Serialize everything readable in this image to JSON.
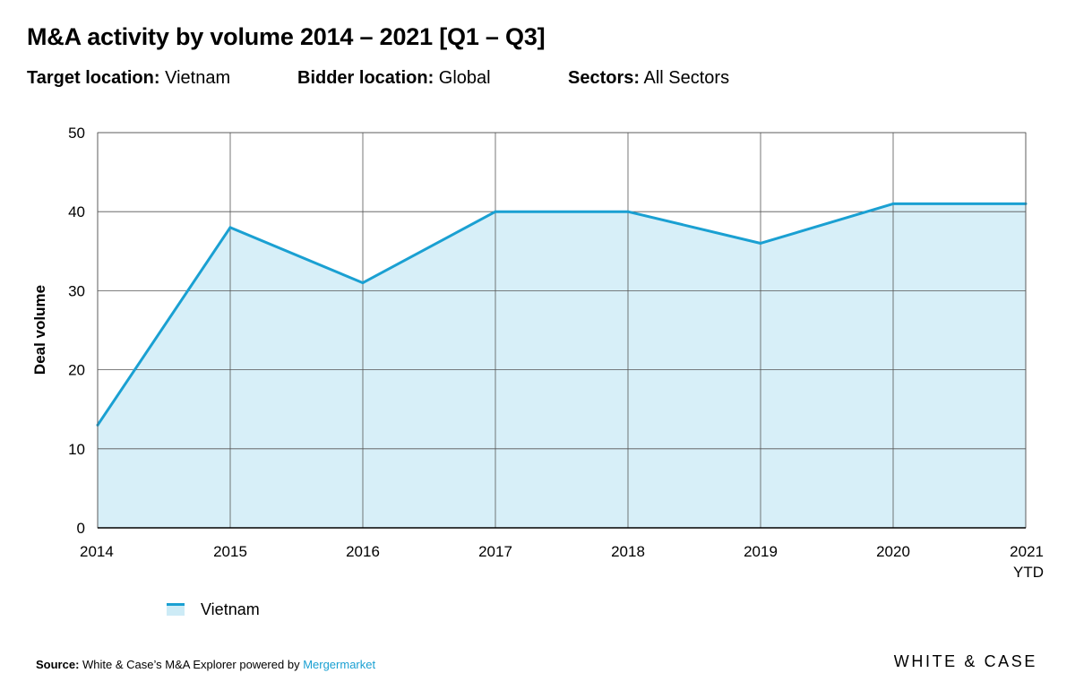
{
  "header": {
    "title": "M&A activity by volume 2014 – 2021 [Q1 – Q3]",
    "filters": [
      {
        "label": "Target location:",
        "value": "Vietnam"
      },
      {
        "label": "Bidder location:",
        "value": "Global"
      },
      {
        "label": "Sectors:",
        "value": "All Sectors"
      }
    ]
  },
  "chart_data": {
    "type": "area",
    "title": "M&A activity by volume 2014 – 2021 [Q1 – Q3]",
    "xlabel": "",
    "ylabel": "Deal volume",
    "categories": [
      "2014",
      "2015",
      "2016",
      "2017",
      "2018",
      "2019",
      "2020",
      "2021 YTD"
    ],
    "category_labels": [
      [
        "2014"
      ],
      [
        "2015"
      ],
      [
        "2016"
      ],
      [
        "2017"
      ],
      [
        "2018"
      ],
      [
        "2019"
      ],
      [
        "2020"
      ],
      [
        "2021",
        "YTD"
      ]
    ],
    "series": [
      {
        "name": "Vietnam",
        "values": [
          13,
          38,
          31,
          40,
          40,
          36,
          41,
          41
        ]
      }
    ],
    "ylim": [
      0,
      50
    ],
    "yticks": [
      0,
      10,
      20,
      30,
      40,
      50
    ],
    "grid": true,
    "legend_position": "bottom-left",
    "colors": {
      "line": "#1aa0d2",
      "fill": "#cdebf6",
      "grid": "#555555"
    }
  },
  "legend": {
    "items": [
      {
        "label": "Vietnam"
      }
    ]
  },
  "footer": {
    "source_label": "Source:",
    "source_text": "White & Case’s M&A Explorer powered by",
    "source_link": "Mergermarket",
    "brand": "WHITE & CASE"
  }
}
